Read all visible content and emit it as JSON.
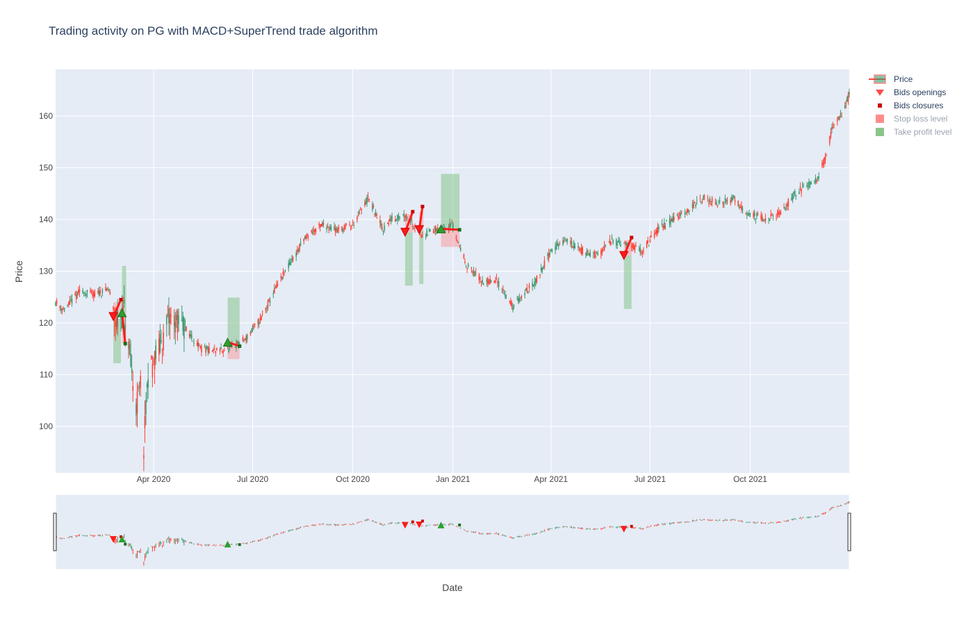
{
  "chart_data": {
    "type": "candlestick",
    "title": "Trading activity on PG with MACD+SuperTrend trade algorithm",
    "xlabel": "Date",
    "ylabel": "Price",
    "x_range": [
      "2020-01-02",
      "2021-12-31"
    ],
    "y_range": [
      91,
      169
    ],
    "y_ticks": [
      100,
      110,
      120,
      130,
      140,
      150,
      160
    ],
    "x_ticks": [
      {
        "date": "2020-04-01",
        "label": "Apr 2020"
      },
      {
        "date": "2020-07-01",
        "label": "Jul 2020"
      },
      {
        "date": "2020-10-01",
        "label": "Oct 2020"
      },
      {
        "date": "2021-01-01",
        "label": "Jan 2021"
      },
      {
        "date": "2021-04-01",
        "label": "Apr 2021"
      },
      {
        "date": "2021-07-01",
        "label": "Jul 2021"
      },
      {
        "date": "2021-10-01",
        "label": "Oct 2021"
      }
    ],
    "price_path": [
      [
        "2020-01-02",
        124
      ],
      [
        "2020-01-10",
        122.5
      ],
      [
        "2020-01-24",
        126
      ],
      [
        "2020-02-07",
        125.5
      ],
      [
        "2020-02-20",
        126.5
      ],
      [
        "2020-02-27",
        120
      ],
      [
        "2020-03-05",
        122
      ],
      [
        "2020-03-12",
        110
      ],
      [
        "2020-03-16",
        104
      ],
      [
        "2020-03-20",
        108
      ],
      [
        "2020-03-23",
        96
      ],
      [
        "2020-03-27",
        110
      ],
      [
        "2020-04-08",
        116
      ],
      [
        "2020-04-16",
        121
      ],
      [
        "2020-04-30",
        119
      ],
      [
        "2020-05-14",
        115
      ],
      [
        "2020-05-28",
        114.5
      ],
      [
        "2020-06-11",
        115
      ],
      [
        "2020-06-25",
        117
      ],
      [
        "2020-07-09",
        121
      ],
      [
        "2020-07-23",
        127
      ],
      [
        "2020-08-06",
        132
      ],
      [
        "2020-08-20",
        137
      ],
      [
        "2020-09-03",
        139
      ],
      [
        "2020-09-17",
        138
      ],
      [
        "2020-10-01",
        139
      ],
      [
        "2020-10-15",
        144
      ],
      [
        "2020-10-29",
        138
      ],
      [
        "2020-11-05",
        140
      ],
      [
        "2020-11-19",
        141
      ],
      [
        "2020-12-03",
        137
      ],
      [
        "2020-12-17",
        138
      ],
      [
        "2020-12-31",
        139
      ],
      [
        "2021-01-14",
        131
      ],
      [
        "2021-01-28",
        128
      ],
      [
        "2021-02-11",
        128
      ],
      [
        "2021-02-25",
        123
      ],
      [
        "2021-03-04",
        125
      ],
      [
        "2021-03-18",
        128
      ],
      [
        "2021-04-01",
        134
      ],
      [
        "2021-04-15",
        136
      ],
      [
        "2021-04-29",
        134
      ],
      [
        "2021-05-13",
        133
      ],
      [
        "2021-05-27",
        136
      ],
      [
        "2021-06-10",
        135
      ],
      [
        "2021-06-24",
        134
      ],
      [
        "2021-07-08",
        138
      ],
      [
        "2021-07-22",
        140
      ],
      [
        "2021-08-05",
        142
      ],
      [
        "2021-08-19",
        144
      ],
      [
        "2021-09-02",
        143
      ],
      [
        "2021-09-16",
        144
      ],
      [
        "2021-09-30",
        141
      ],
      [
        "2021-10-14",
        140
      ],
      [
        "2021-10-28",
        141
      ],
      [
        "2021-11-11",
        145
      ],
      [
        "2021-11-25",
        147
      ],
      [
        "2021-12-02",
        148
      ],
      [
        "2021-12-09",
        152
      ],
      [
        "2021-12-16",
        158
      ],
      [
        "2021-12-23",
        160
      ],
      [
        "2021-12-31",
        164
      ]
    ],
    "up_color": "#3d9970",
    "down_color": "#ff4136",
    "bids": [
      {
        "open_date": "2020-02-24",
        "open_price": 121.2,
        "close_date": "2020-03-02",
        "close_price": 124.5,
        "direction": "short",
        "tp": [
          112.2,
          120.8
        ],
        "sl": [
          121.2,
          124.0
        ]
      },
      {
        "open_date": "2020-03-03",
        "open_price": 122.0,
        "close_date": "2020-03-06",
        "close_price": 116.0,
        "direction": "long",
        "tp": [
          122.0,
          131.0
        ],
        "sl": [
          116.0,
          122.0
        ]
      },
      {
        "open_date": "2020-06-08",
        "open_price": 116.3,
        "close_date": "2020-06-19",
        "close_price": 115.5,
        "direction": "long",
        "tp": [
          116.3,
          124.9
        ],
        "sl": [
          113.0,
          116.3
        ]
      },
      {
        "open_date": "2020-11-18",
        "open_price": 137.5,
        "close_date": "2020-11-25",
        "close_price": 141.5,
        "direction": "short",
        "tp": [
          127.2,
          137.5
        ],
        "sl": [
          137.5,
          141.0
        ]
      },
      {
        "open_date": "2020-12-01",
        "open_price": 138.0,
        "close_date": "2020-12-04",
        "close_price": 142.5,
        "direction": "short",
        "tp": [
          127.5,
          138.0
        ],
        "sl": [
          138.0,
          141.5
        ]
      },
      {
        "open_date": "2020-12-21",
        "open_price": 138.2,
        "close_date": "2021-01-07",
        "close_price": 138.0,
        "direction": "long",
        "tp": [
          138.2,
          148.8
        ],
        "sl": [
          134.7,
          138.2
        ]
      },
      {
        "open_date": "2021-06-07",
        "open_price": 133.0,
        "close_date": "2021-06-14",
        "close_price": 136.5,
        "direction": "short",
        "tp": [
          122.7,
          133.0
        ],
        "sl": [
          133.0,
          136.0
        ]
      }
    ],
    "legend": [
      {
        "label": "Price",
        "symbol": "candle"
      },
      {
        "label": "Bids openings",
        "symbol": "triangle-down"
      },
      {
        "label": "Bids closures",
        "symbol": "square"
      },
      {
        "label": "Stop loss level",
        "symbol": "rect-red"
      },
      {
        "label": "Take profit level",
        "symbol": "rect-green"
      }
    ],
    "legend_position": "top-right",
    "grid": true,
    "rangeslider": true,
    "colors": {
      "plot_bg": "#e5ecf6",
      "grid": "#ffffff",
      "marker_red": "#ff1a1a",
      "marker_green": "#2ca02c",
      "tp_fill": "#7fbf7f",
      "sl_fill": "#ff7f7f"
    }
  }
}
